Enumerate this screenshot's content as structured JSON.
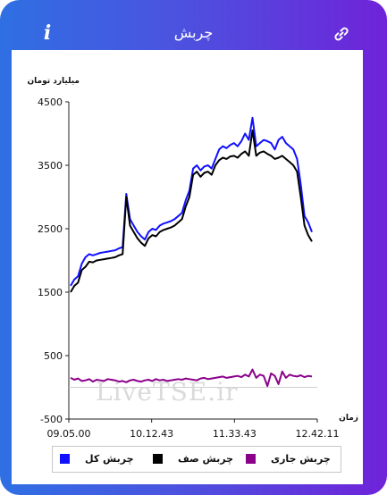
{
  "header": {
    "title": "چربش"
  },
  "watermark": "LiveTSE.ir",
  "legend": [
    {
      "label": "چربش کل",
      "color": "#1010ff"
    },
    {
      "label": "چربش صف",
      "color": "#000000"
    },
    {
      "label": "چربش جاری",
      "color": "#8b008b"
    }
  ],
  "chart_data": {
    "type": "line",
    "ylabel": "میلیارد تومان",
    "xlabel": "زمان",
    "ylim": [
      -500,
      4500
    ],
    "yticks": [
      "4500",
      "3500",
      "2500",
      "1500",
      "500",
      "-500"
    ],
    "xticks": [
      "09.05.00",
      "10.12.43",
      "11.33.43",
      "12.42.11"
    ],
    "series": [
      {
        "name": "چربش کل",
        "color": "#1010ff",
        "values": [
          1600,
          1700,
          1750,
          1950,
          2050,
          2100,
          2080,
          2100,
          2120,
          2130,
          2140,
          2150,
          2160,
          2190,
          2210,
          3050,
          2650,
          2550,
          2450,
          2380,
          2330,
          2450,
          2500,
          2480,
          2550,
          2580,
          2600,
          2620,
          2650,
          2700,
          2750,
          2950,
          3100,
          3450,
          3500,
          3420,
          3480,
          3500,
          3450,
          3600,
          3750,
          3800,
          3770,
          3820,
          3850,
          3800,
          3880,
          4000,
          3900,
          4250,
          3800,
          3850,
          3900,
          3880,
          3850,
          3750,
          3900,
          3950,
          3850,
          3800,
          3750,
          3600,
          3200,
          2700,
          2600,
          2450
        ]
      },
      {
        "name": "چربش صف",
        "color": "#000000",
        "values": [
          1500,
          1600,
          1650,
          1850,
          1900,
          1980,
          1970,
          2000,
          2010,
          2020,
          2030,
          2040,
          2050,
          2080,
          2100,
          3000,
          2550,
          2450,
          2350,
          2280,
          2230,
          2350,
          2400,
          2380,
          2450,
          2480,
          2500,
          2520,
          2550,
          2600,
          2650,
          2850,
          3000,
          3350,
          3400,
          3320,
          3380,
          3400,
          3350,
          3500,
          3580,
          3620,
          3600,
          3640,
          3650,
          3620,
          3680,
          3720,
          3650,
          4050,
          3650,
          3700,
          3720,
          3680,
          3650,
          3600,
          3620,
          3650,
          3600,
          3550,
          3500,
          3400,
          3000,
          2550,
          2400,
          2300
        ]
      },
      {
        "name": "چربش جاری",
        "color": "#8b008b",
        "values": [
          150,
          120,
          140,
          100,
          110,
          130,
          90,
          120,
          110,
          100,
          130,
          120,
          110,
          90,
          100,
          80,
          110,
          120,
          100,
          90,
          110,
          120,
          100,
          130,
          110,
          120,
          100,
          110,
          120,
          130,
          120,
          140,
          130,
          120,
          110,
          140,
          150,
          130,
          140,
          150,
          160,
          170,
          150,
          160,
          170,
          180,
          160,
          200,
          170,
          280,
          150,
          200,
          180,
          20,
          220,
          180,
          50,
          250,
          150,
          200,
          180,
          170,
          190,
          160,
          180,
          170
        ]
      }
    ]
  }
}
